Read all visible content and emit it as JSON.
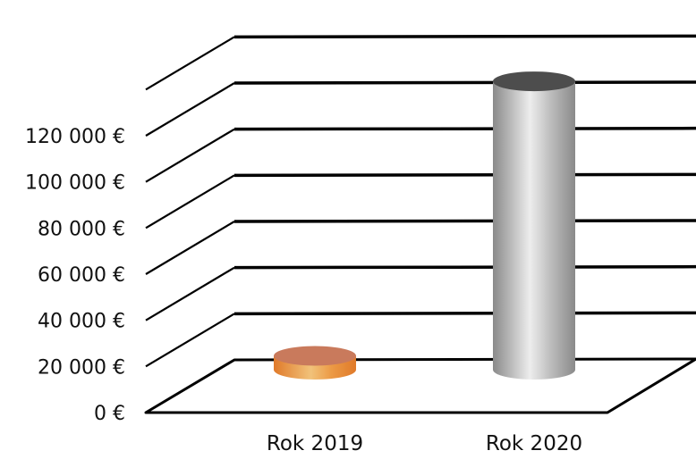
{
  "chart_data": {
    "type": "bar",
    "style": "3d-cylinder",
    "categories": [
      "Rok 2019",
      "Rok 2020"
    ],
    "values": [
      6000,
      125000
    ],
    "ylim": [
      0,
      140000
    ],
    "y_ticks": [
      {
        "value": 0,
        "label": "0 €"
      },
      {
        "value": 20000,
        "label": "20 000 €"
      },
      {
        "value": 40000,
        "label": "40 000 €"
      },
      {
        "value": 60000,
        "label": "60 000 €"
      },
      {
        "value": 80000,
        "label": "80 000 €"
      },
      {
        "value": 100000,
        "label": "100 000 €"
      },
      {
        "value": 120000,
        "label": "120 000 €"
      }
    ],
    "grid": true,
    "legend": "none",
    "colors": {
      "Rok 2019": {
        "light": "#f1c27a",
        "mid": "#ec9a45",
        "dark": "#e07a2a",
        "top": "#c97a5c"
      },
      "Rok 2020": {
        "light": "#ededed",
        "mid": "#bdbdbd",
        "dark": "#8a8a8a",
        "top": "#4d4d4d"
      },
      "grid": "#000000",
      "text": "#111111"
    }
  }
}
